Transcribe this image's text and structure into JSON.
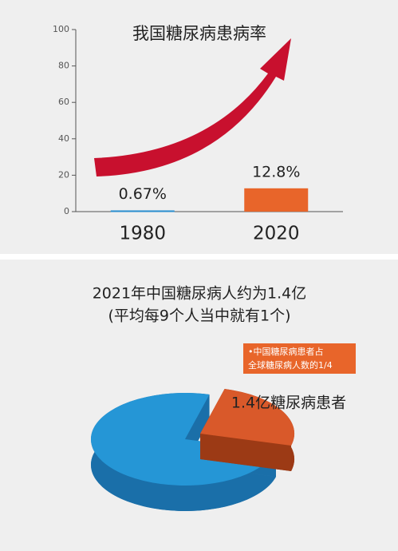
{
  "chart_data": [
    {
      "type": "bar",
      "title": "我国糖尿病患病率",
      "categories": [
        "1980",
        "2020"
      ],
      "values": [
        0.67,
        12.8
      ],
      "value_labels": [
        "0.67%",
        "12.8%"
      ],
      "colors": [
        "#2a8fd0",
        "#e8652a"
      ],
      "ylim": [
        0,
        100
      ],
      "yticks": [
        0,
        20,
        40,
        60,
        80,
        100
      ]
    },
    {
      "type": "pie",
      "title": "2021年中国糖尿病人约为1.4亿",
      "subtitle": "(平均每9个人当中就有1个)",
      "values": [
        75,
        25
      ],
      "colors": [
        "#2596d6",
        "#d9592a"
      ],
      "annotation": "1.4亿糖尿病患者",
      "callout": [
        "•中国糖尿病患者占",
        "全球糖尿病人数的1/4"
      ]
    }
  ]
}
